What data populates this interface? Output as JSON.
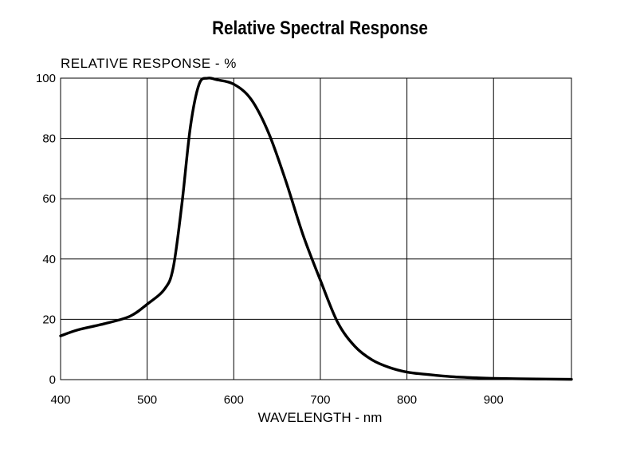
{
  "chart_data": {
    "type": "line",
    "title": "Relative Spectral Response",
    "ylabel": "RELATIVE RESPONSE - %",
    "xlabel": "WAVELENGTH - nm",
    "xlim": [
      400,
      990
    ],
    "ylim": [
      0,
      100
    ],
    "x_ticks": [
      400,
      500,
      600,
      700,
      800,
      900
    ],
    "y_ticks": [
      0,
      20,
      40,
      60,
      80,
      100
    ],
    "grid": true,
    "color": "#000000",
    "series": [
      {
        "x": [
          400,
          420,
          450,
          480,
          500,
          520,
          530,
          540,
          550,
          560,
          570,
          580,
          600,
          620,
          640,
          660,
          680,
          700,
          720,
          740,
          760,
          780,
          800,
          820,
          850,
          880,
          900,
          950,
          990
        ],
        "y": [
          14.5,
          16.5,
          18.5,
          21,
          25,
          30,
          37,
          58,
          84,
          98,
          100,
          99.5,
          98,
          93,
          82,
          66,
          48,
          33,
          19,
          11,
          6.5,
          4,
          2.5,
          1.8,
          1,
          0.6,
          0.4,
          0.2,
          0.1
        ]
      }
    ]
  }
}
